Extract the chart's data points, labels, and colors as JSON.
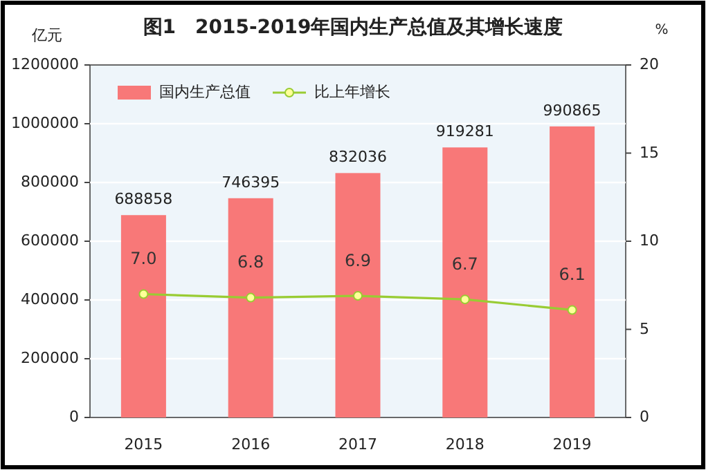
{
  "chart_data": {
    "type": "bar",
    "title": "图1　2015-2019年国内生产总值及其增长速度",
    "ylabel": "亿元",
    "y2label": "%",
    "categories": [
      "2015",
      "2016",
      "2017",
      "2018",
      "2019"
    ],
    "series": [
      {
        "name": "国内生产总值",
        "color": "#f87878",
        "values": [
          688858,
          746395,
          832036,
          919281,
          990865
        ],
        "value_labels": [
          "688858",
          "746395",
          "832036",
          "919281",
          "990865"
        ]
      },
      {
        "name": "比上年增长",
        "type": "line",
        "axis": "y2",
        "color": "#99cc33",
        "marker": "circle",
        "values": [
          7.0,
          6.8,
          6.9,
          6.7,
          6.1
        ],
        "value_labels": [
          "7.0",
          "6.8",
          "6.9",
          "6.7",
          "6.1"
        ]
      }
    ],
    "ylim": [
      0,
      1200000
    ],
    "yticks": [
      0,
      200000,
      400000,
      600000,
      800000,
      1000000,
      1200000
    ],
    "y2lim": [
      0,
      20
    ],
    "y2ticks": [
      0,
      5,
      10,
      15,
      20
    ],
    "grid": "y",
    "legend": "top left"
  }
}
